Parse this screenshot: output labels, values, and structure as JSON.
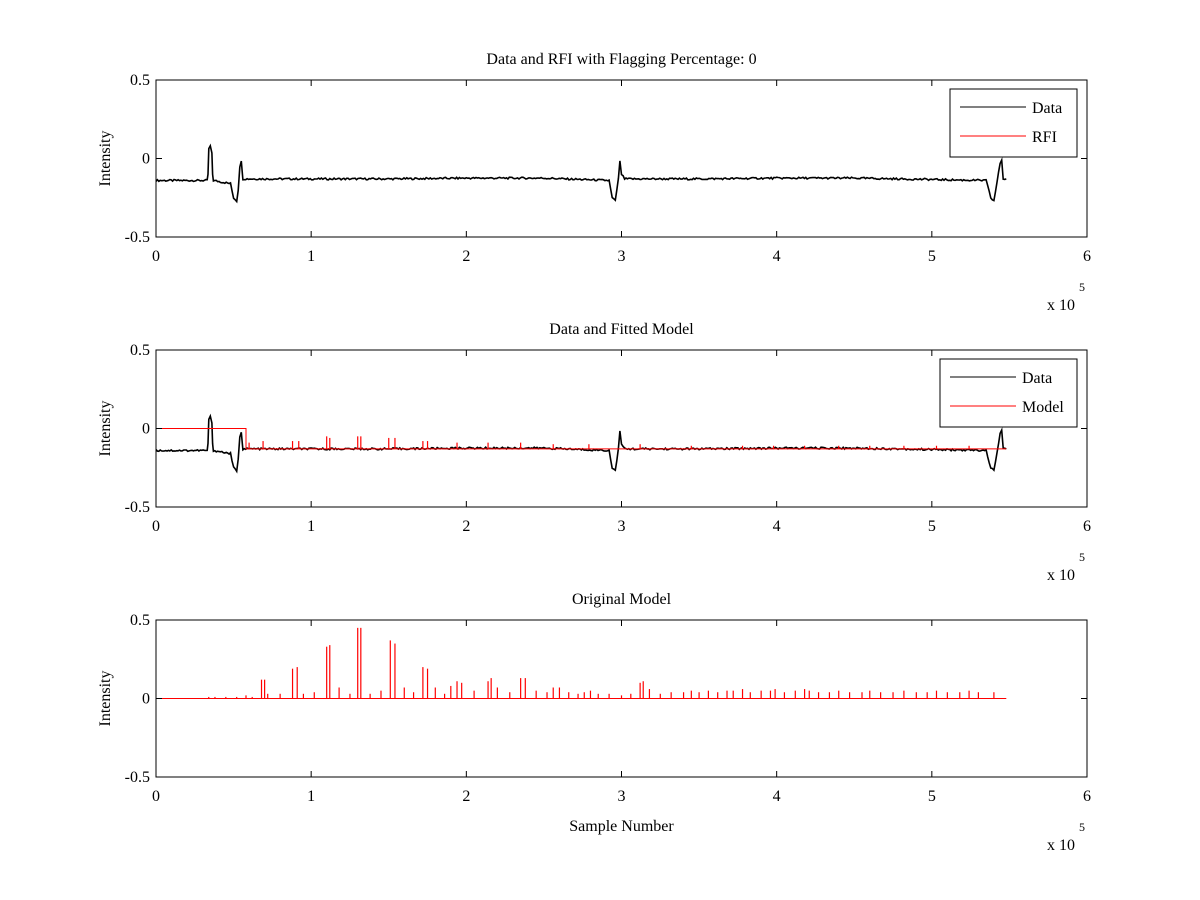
{
  "chart_data": [
    {
      "type": "line",
      "title": "Data and RFI with Flagging Percentage: 0",
      "xlabel": "",
      "ylabel": "Intensity",
      "xlim": [
        0,
        600000
      ],
      "ylim": [
        -0.5,
        0.5
      ],
      "xticks": [
        0,
        1,
        2,
        3,
        4,
        5,
        6
      ],
      "yticks": [
        "0.5",
        "0",
        "-0.5"
      ],
      "x_multiplier": "x 10",
      "x_exponent": "5",
      "legend": {
        "position": "top-right",
        "entries": [
          "Data",
          "RFI"
        ]
      },
      "series": [
        {
          "name": "Data",
          "color": "#000000",
          "points": [
            [
              0,
              -0.14
            ],
            [
              33000,
              -0.14
            ],
            [
              33500,
              -0.1
            ],
            [
              34000,
              0.06
            ],
            [
              35000,
              0.08
            ],
            [
              36000,
              0.03
            ],
            [
              36500,
              -0.1
            ],
            [
              37000,
              -0.14
            ],
            [
              48000,
              -0.16
            ],
            [
              50000,
              -0.25
            ],
            [
              52000,
              -0.27
            ],
            [
              53000,
              -0.2
            ],
            [
              54000,
              -0.05
            ],
            [
              55000,
              -0.02
            ],
            [
              56000,
              -0.13
            ],
            [
              150000,
              -0.13
            ],
            [
              200000,
              -0.125
            ],
            [
              250000,
              -0.125
            ],
            [
              292000,
              -0.14
            ],
            [
              294000,
              -0.25
            ],
            [
              296000,
              -0.27
            ],
            [
              298000,
              -0.13
            ],
            [
              299000,
              -0.02
            ],
            [
              300000,
              -0.1
            ],
            [
              302000,
              -0.13
            ],
            [
              350000,
              -0.13
            ],
            [
              400000,
              -0.125
            ],
            [
              450000,
              -0.125
            ],
            [
              535000,
              -0.14
            ],
            [
              538000,
              -0.25
            ],
            [
              540000,
              -0.27
            ],
            [
              542000,
              -0.15
            ],
            [
              544000,
              -0.03
            ],
            [
              545000,
              -0.01
            ],
            [
              546000,
              -0.13
            ],
            [
              548000,
              -0.13
            ]
          ]
        },
        {
          "name": "RFI",
          "color": "#ff0000",
          "points": []
        }
      ]
    },
    {
      "type": "line",
      "title": "Data and Fitted Model",
      "xlabel": "",
      "ylabel": "Intensity",
      "xlim": [
        0,
        600000
      ],
      "ylim": [
        -0.5,
        0.5
      ],
      "xticks": [
        0,
        1,
        2,
        3,
        4,
        5,
        6
      ],
      "yticks": [
        "0.5",
        "0",
        "-0.5"
      ],
      "x_multiplier": "x 10",
      "x_exponent": "5",
      "legend": {
        "position": "top-right",
        "entries": [
          "Data",
          "Model"
        ]
      },
      "series": [
        {
          "name": "Data",
          "color": "#000000",
          "points": [
            [
              0,
              -0.14
            ],
            [
              33000,
              -0.14
            ],
            [
              33500,
              -0.1
            ],
            [
              34000,
              0.06
            ],
            [
              35000,
              0.08
            ],
            [
              36000,
              0.03
            ],
            [
              36500,
              -0.1
            ],
            [
              37000,
              -0.14
            ],
            [
              48000,
              -0.16
            ],
            [
              50000,
              -0.25
            ],
            [
              52000,
              -0.27
            ],
            [
              53000,
              -0.2
            ],
            [
              54000,
              -0.05
            ],
            [
              55000,
              -0.02
            ],
            [
              56000,
              -0.13
            ],
            [
              150000,
              -0.13
            ],
            [
              200000,
              -0.125
            ],
            [
              250000,
              -0.125
            ],
            [
              292000,
              -0.14
            ],
            [
              294000,
              -0.25
            ],
            [
              296000,
              -0.27
            ],
            [
              298000,
              -0.13
            ],
            [
              299000,
              -0.02
            ],
            [
              300000,
              -0.1
            ],
            [
              302000,
              -0.13
            ],
            [
              350000,
              -0.13
            ],
            [
              400000,
              -0.125
            ],
            [
              450000,
              -0.125
            ],
            [
              535000,
              -0.14
            ],
            [
              538000,
              -0.25
            ],
            [
              540000,
              -0.27
            ],
            [
              542000,
              -0.15
            ],
            [
              544000,
              -0.03
            ],
            [
              545000,
              -0.01
            ],
            [
              546000,
              -0.13
            ],
            [
              548000,
              -0.13
            ]
          ]
        },
        {
          "name": "Model",
          "color": "#ff0000",
          "points": [
            [
              0,
              0
            ],
            [
              58000,
              0
            ],
            [
              58000,
              -0.13
            ],
            [
              548000,
              -0.13
            ]
          ],
          "spikes": [
            [
              60000,
              -0.09
            ],
            [
              69000,
              -0.08
            ],
            [
              88000,
              -0.08
            ],
            [
              92000,
              -0.08
            ],
            [
              110000,
              -0.05
            ],
            [
              112000,
              -0.06
            ],
            [
              130000,
              -0.05
            ],
            [
              132000,
              -0.05
            ],
            [
              150000,
              -0.06
            ],
            [
              154000,
              -0.06
            ],
            [
              172000,
              -0.08
            ],
            [
              175000,
              -0.08
            ],
            [
              194000,
              -0.09
            ],
            [
              214000,
              -0.09
            ],
            [
              235000,
              -0.09
            ],
            [
              256000,
              -0.1
            ],
            [
              279000,
              -0.1
            ],
            [
              312000,
              -0.1
            ],
            [
              345000,
              -0.11
            ],
            [
              378000,
              -0.11
            ],
            [
              398000,
              -0.11
            ],
            [
              418000,
              -0.11
            ],
            [
              440000,
              -0.11
            ],
            [
              460000,
              -0.11
            ],
            [
              482000,
              -0.11
            ],
            [
              503000,
              -0.11
            ],
            [
              524000,
              -0.11
            ]
          ]
        }
      ]
    },
    {
      "type": "line",
      "title": "Original Model",
      "xlabel": "Sample Number",
      "ylabel": "Intensity",
      "xlim": [
        0,
        600000
      ],
      "ylim": [
        -0.5,
        0.5
      ],
      "xticks": [
        0,
        1,
        2,
        3,
        4,
        5,
        6
      ],
      "yticks": [
        "0.5",
        "0",
        "-0.5"
      ],
      "x_multiplier": "x 10",
      "x_exponent": "5",
      "series": [
        {
          "name": "",
          "color": "#ff0000",
          "points": [
            [
              0,
              0
            ],
            [
              548000,
              0
            ]
          ],
          "spikes": [
            [
              34000,
              0.01
            ],
            [
              38000,
              0.01
            ],
            [
              45000,
              0.01
            ],
            [
              52000,
              0.01
            ],
            [
              58000,
              0.02
            ],
            [
              62000,
              0.01
            ],
            [
              68000,
              0.12
            ],
            [
              70000,
              0.12
            ],
            [
              72000,
              0.03
            ],
            [
              80000,
              0.03
            ],
            [
              88000,
              0.19
            ],
            [
              91000,
              0.2
            ],
            [
              95000,
              0.03
            ],
            [
              102000,
              0.04
            ],
            [
              110000,
              0.33
            ],
            [
              112000,
              0.34
            ],
            [
              118000,
              0.07
            ],
            [
              125000,
              0.03
            ],
            [
              130000,
              0.45
            ],
            [
              132000,
              0.45
            ],
            [
              138000,
              0.03
            ],
            [
              145000,
              0.05
            ],
            [
              151000,
              0.37
            ],
            [
              154000,
              0.35
            ],
            [
              160000,
              0.07
            ],
            [
              166000,
              0.04
            ],
            [
              172000,
              0.2
            ],
            [
              175000,
              0.19
            ],
            [
              180000,
              0.07
            ],
            [
              186000,
              0.03
            ],
            [
              190000,
              0.08
            ],
            [
              194000,
              0.11
            ],
            [
              197000,
              0.1
            ],
            [
              205000,
              0.05
            ],
            [
              214000,
              0.11
            ],
            [
              216000,
              0.13
            ],
            [
              220000,
              0.07
            ],
            [
              228000,
              0.04
            ],
            [
              235000,
              0.13
            ],
            [
              238000,
              0.13
            ],
            [
              245000,
              0.05
            ],
            [
              252000,
              0.04
            ],
            [
              256000,
              0.07
            ],
            [
              260000,
              0.07
            ],
            [
              266000,
              0.04
            ],
            [
              272000,
              0.03
            ],
            [
              276000,
              0.04
            ],
            [
              280000,
              0.05
            ],
            [
              285000,
              0.03
            ],
            [
              292000,
              0.03
            ],
            [
              300000,
              0.02
            ],
            [
              306000,
              0.03
            ],
            [
              312000,
              0.1
            ],
            [
              314000,
              0.11
            ],
            [
              318000,
              0.06
            ],
            [
              325000,
              0.03
            ],
            [
              332000,
              0.04
            ],
            [
              340000,
              0.04
            ],
            [
              345000,
              0.05
            ],
            [
              350000,
              0.04
            ],
            [
              356000,
              0.05
            ],
            [
              362000,
              0.04
            ],
            [
              368000,
              0.05
            ],
            [
              372000,
              0.05
            ],
            [
              378000,
              0.06
            ],
            [
              383000,
              0.04
            ],
            [
              390000,
              0.05
            ],
            [
              396000,
              0.05
            ],
            [
              399000,
              0.06
            ],
            [
              405000,
              0.04
            ],
            [
              412000,
              0.05
            ],
            [
              418000,
              0.06
            ],
            [
              421000,
              0.05
            ],
            [
              427000,
              0.04
            ],
            [
              434000,
              0.04
            ],
            [
              440000,
              0.05
            ],
            [
              447000,
              0.04
            ],
            [
              455000,
              0.04
            ],
            [
              460000,
              0.05
            ],
            [
              467000,
              0.04
            ],
            [
              475000,
              0.04
            ],
            [
              482000,
              0.05
            ],
            [
              490000,
              0.04
            ],
            [
              497000,
              0.04
            ],
            [
              503000,
              0.05
            ],
            [
              510000,
              0.04
            ],
            [
              518000,
              0.04
            ],
            [
              524000,
              0.05
            ],
            [
              530000,
              0.04
            ],
            [
              540000,
              0.04
            ]
          ]
        }
      ]
    }
  ]
}
